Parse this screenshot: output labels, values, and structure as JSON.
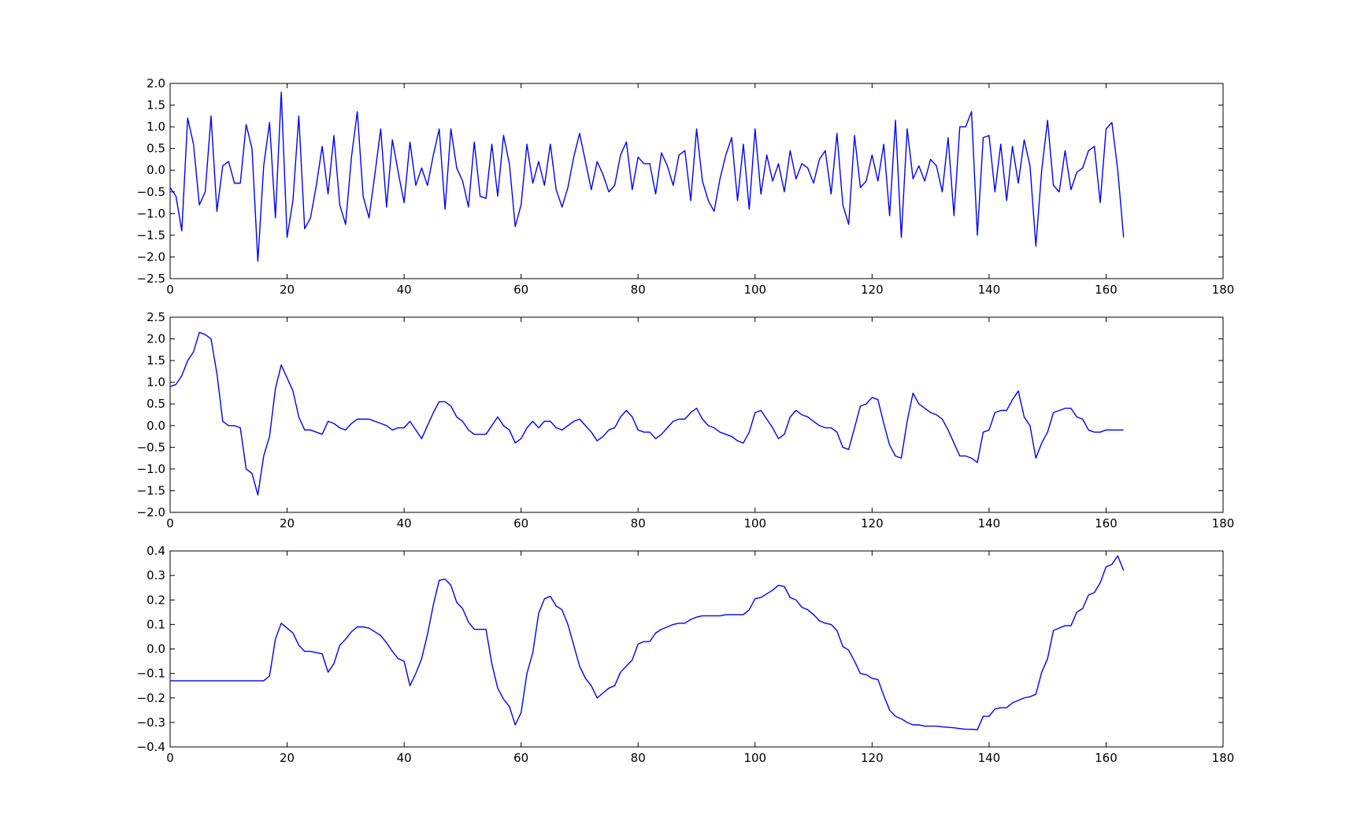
{
  "colors": {
    "line": "#0000ff",
    "frame": "#000000",
    "background": "#ffffff"
  },
  "chart_data": [
    {
      "type": "line",
      "grid": false,
      "xlim": [
        0,
        180
      ],
      "ylim": [
        -2.5,
        2.0
      ],
      "xticks": [
        0,
        20,
        40,
        60,
        80,
        100,
        120,
        140,
        160,
        180
      ],
      "yticks": [
        -2.5,
        -2.0,
        -1.5,
        -1.0,
        -0.5,
        0.0,
        0.5,
        1.0,
        1.5,
        2.0
      ],
      "xtick_labels": [
        "0",
        "20",
        "40",
        "60",
        "80",
        "100",
        "120",
        "140",
        "160",
        "180"
      ],
      "ytick_labels": [
        "−2.5",
        "−2.0",
        "−1.5",
        "−1.0",
        "−0.5",
        "0.0",
        "0.5",
        "1.0",
        "1.5",
        "2.0"
      ],
      "series": [
        {
          "values": [
            -0.4,
            -0.6,
            -1.4,
            1.2,
            0.6,
            -0.8,
            -0.5,
            1.25,
            -0.95,
            0.1,
            0.2,
            -0.3,
            -0.3,
            1.05,
            0.5,
            -2.1,
            0.1,
            1.1,
            -1.1,
            1.8,
            -1.55,
            -0.7,
            1.25,
            -1.35,
            -1.1,
            -0.35,
            0.55,
            -0.55,
            0.8,
            -0.8,
            -1.25,
            0.3,
            1.35,
            -0.6,
            -1.1,
            -0.1,
            0.95,
            -0.85,
            0.7,
            -0.05,
            -0.75,
            0.65,
            -0.35,
            0.05,
            -0.35,
            0.35,
            0.95,
            -0.9,
            0.95,
            0.05,
            -0.25,
            -0.85,
            0.65,
            -0.6,
            -0.65,
            0.6,
            -0.6,
            0.8,
            0.15,
            -1.3,
            -0.8,
            0.6,
            -0.3,
            0.2,
            -0.35,
            0.6,
            -0.45,
            -0.85,
            -0.4,
            0.3,
            0.85,
            0.2,
            -0.45,
            0.2,
            -0.1,
            -0.5,
            -0.35,
            0.35,
            0.65,
            -0.45,
            0.3,
            0.15,
            0.15,
            -0.55,
            0.4,
            0.1,
            -0.35,
            0.35,
            0.45,
            -0.7,
            0.95,
            -0.25,
            -0.7,
            -0.95,
            -0.2,
            0.35,
            0.75,
            -0.7,
            0.6,
            -0.9,
            0.95,
            -0.55,
            0.35,
            -0.25,
            0.15,
            -0.5,
            0.45,
            -0.2,
            0.15,
            0.05,
            -0.3,
            0.25,
            0.45,
            -0.55,
            0.85,
            -0.8,
            -1.25,
            0.8,
            -0.4,
            -0.25,
            0.35,
            -0.25,
            0.6,
            -1.05,
            1.15,
            -1.55,
            0.95,
            -0.2,
            0.1,
            -0.25,
            0.25,
            0.1,
            -0.5,
            0.75,
            -1.05,
            1.0,
            1.0,
            1.35,
            -1.5,
            0.75,
            0.8,
            -0.5,
            0.6,
            -0.7,
            0.55,
            -0.3,
            0.7,
            0.1,
            -1.75,
            0.0,
            1.15,
            -0.35,
            -0.5,
            0.45,
            -0.45,
            -0.05,
            0.05,
            0.45,
            0.55,
            -0.75,
            0.95,
            1.1,
            0.0,
            -1.55
          ]
        }
      ]
    },
    {
      "type": "line",
      "grid": false,
      "xlim": [
        0,
        180
      ],
      "ylim": [
        -2.0,
        2.5
      ],
      "xticks": [
        0,
        20,
        40,
        60,
        80,
        100,
        120,
        140,
        160,
        180
      ],
      "yticks": [
        -2.0,
        -1.5,
        -1.0,
        -0.5,
        0.0,
        0.5,
        1.0,
        1.5,
        2.0,
        2.5
      ],
      "xtick_labels": [
        "0",
        "20",
        "40",
        "60",
        "80",
        "100",
        "120",
        "140",
        "160",
        "180"
      ],
      "ytick_labels": [
        "−2.0",
        "−1.5",
        "−1.0",
        "−0.5",
        "0.0",
        "0.5",
        "1.0",
        "1.5",
        "2.0",
        "2.5"
      ],
      "series": [
        {
          "values": [
            0.9,
            0.95,
            1.15,
            1.5,
            1.7,
            2.15,
            2.1,
            2.0,
            1.2,
            0.1,
            0.0,
            0.0,
            -0.05,
            -1.0,
            -1.1,
            -1.6,
            -0.7,
            -0.25,
            0.85,
            1.4,
            1.1,
            0.8,
            0.2,
            -0.1,
            -0.1,
            -0.15,
            -0.2,
            0.1,
            0.05,
            -0.05,
            -0.1,
            0.05,
            0.15,
            0.15,
            0.15,
            0.1,
            0.05,
            0.0,
            -0.1,
            -0.05,
            -0.05,
            0.1,
            -0.1,
            -0.3,
            0.0,
            0.3,
            0.55,
            0.55,
            0.45,
            0.2,
            0.1,
            -0.1,
            -0.2,
            -0.2,
            -0.2,
            0.0,
            0.2,
            0.0,
            -0.1,
            -0.4,
            -0.3,
            -0.05,
            0.1,
            -0.05,
            0.1,
            0.1,
            -0.05,
            -0.1,
            0.0,
            0.1,
            0.15,
            0.0,
            -0.15,
            -0.35,
            -0.25,
            -0.1,
            -0.05,
            0.2,
            0.35,
            0.2,
            -0.1,
            -0.15,
            -0.15,
            -0.3,
            -0.2,
            -0.05,
            0.1,
            0.15,
            0.15,
            0.3,
            0.4,
            0.15,
            0.0,
            -0.05,
            -0.15,
            -0.2,
            -0.25,
            -0.35,
            -0.4,
            -0.15,
            0.3,
            0.35,
            0.15,
            -0.05,
            -0.3,
            -0.2,
            0.2,
            0.35,
            0.25,
            0.2,
            0.1,
            0.0,
            -0.05,
            -0.05,
            -0.15,
            -0.5,
            -0.55,
            -0.05,
            0.45,
            0.5,
            0.65,
            0.6,
            0.05,
            -0.45,
            -0.7,
            -0.75,
            0.1,
            0.75,
            0.5,
            0.4,
            0.3,
            0.25,
            0.15,
            -0.1,
            -0.4,
            -0.7,
            -0.7,
            -0.75,
            -0.85,
            -0.15,
            -0.1,
            0.3,
            0.35,
            0.35,
            0.6,
            0.8,
            0.2,
            0.0,
            -0.75,
            -0.4,
            -0.15,
            0.3,
            0.35,
            0.4,
            0.4,
            0.2,
            0.15,
            -0.1,
            -0.15,
            -0.15,
            -0.1,
            -0.1,
            -0.1,
            -0.1
          ]
        }
      ]
    },
    {
      "type": "line",
      "grid": false,
      "xlim": [
        0,
        180
      ],
      "ylim": [
        -0.4,
        0.4
      ],
      "xticks": [
        0,
        20,
        40,
        60,
        80,
        100,
        120,
        140,
        160,
        180
      ],
      "yticks": [
        -0.4,
        -0.3,
        -0.2,
        -0.1,
        0.0,
        0.1,
        0.2,
        0.3,
        0.4
      ],
      "xtick_labels": [
        "0",
        "20",
        "40",
        "60",
        "80",
        "100",
        "120",
        "140",
        "160",
        "180"
      ],
      "ytick_labels": [
        "−0.4",
        "−0.3",
        "−0.2",
        "−0.1",
        "0.0",
        "0.1",
        "0.2",
        "0.3",
        "0.4"
      ],
      "series": [
        {
          "values": [
            -0.13,
            -0.13,
            -0.13,
            -0.13,
            -0.13,
            -0.13,
            -0.13,
            -0.13,
            -0.13,
            -0.13,
            -0.13,
            -0.13,
            -0.13,
            -0.13,
            -0.13,
            -0.13,
            -0.13,
            -0.11,
            0.04,
            0.105,
            0.085,
            0.065,
            0.015,
            -0.01,
            -0.01,
            -0.015,
            -0.02,
            -0.095,
            -0.06,
            0.015,
            0.04,
            0.07,
            0.09,
            0.09,
            0.085,
            0.07,
            0.055,
            0.025,
            -0.01,
            -0.04,
            -0.05,
            -0.15,
            -0.1,
            -0.04,
            0.06,
            0.18,
            0.28,
            0.285,
            0.26,
            0.19,
            0.165,
            0.11,
            0.08,
            0.08,
            0.08,
            -0.06,
            -0.16,
            -0.205,
            -0.235,
            -0.31,
            -0.26,
            -0.1,
            -0.015,
            0.145,
            0.205,
            0.215,
            0.175,
            0.16,
            0.1,
            0.015,
            -0.07,
            -0.12,
            -0.15,
            -0.2,
            -0.18,
            -0.16,
            -0.15,
            -0.095,
            -0.07,
            -0.045,
            0.02,
            0.03,
            0.03,
            0.065,
            0.08,
            0.09,
            0.1,
            0.105,
            0.105,
            0.12,
            0.13,
            0.135,
            0.135,
            0.135,
            0.135,
            0.14,
            0.14,
            0.14,
            0.14,
            0.16,
            0.205,
            0.21,
            0.225,
            0.24,
            0.26,
            0.255,
            0.21,
            0.2,
            0.17,
            0.16,
            0.14,
            0.115,
            0.105,
            0.1,
            0.075,
            0.01,
            -0.005,
            -0.05,
            -0.1,
            -0.105,
            -0.12,
            -0.125,
            -0.19,
            -0.25,
            -0.275,
            -0.285,
            -0.3,
            -0.31,
            -0.31,
            -0.315,
            -0.315,
            -0.315,
            -0.318,
            -0.32,
            -0.322,
            -0.325,
            -0.328,
            -0.328,
            -0.33,
            -0.275,
            -0.275,
            -0.245,
            -0.24,
            -0.24,
            -0.22,
            -0.21,
            -0.2,
            -0.195,
            -0.185,
            -0.095,
            -0.04,
            0.075,
            0.085,
            0.095,
            0.095,
            0.15,
            0.165,
            0.22,
            0.23,
            0.27,
            0.335,
            0.345,
            0.38,
            0.32
          ]
        }
      ]
    }
  ]
}
